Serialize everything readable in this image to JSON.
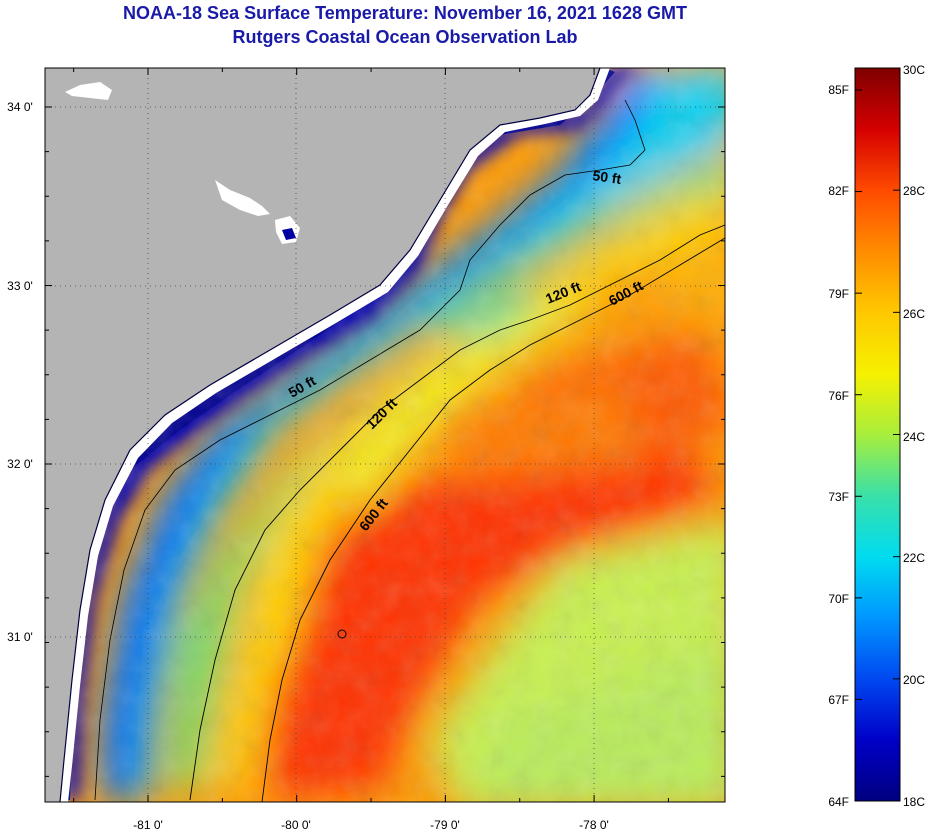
{
  "title": {
    "line1": "NOAA-18 Sea Surface Temperature:  November 16, 2021 1628 GMT",
    "line2": "Rutgers Coastal Ocean Observation Lab"
  },
  "map": {
    "lon_ticks": [
      "-81 0'",
      "-80 0'",
      "-79 0'",
      "-78 0'"
    ],
    "lat_ticks": [
      "34 0'",
      "33 0'",
      "32 0'",
      "31 0'"
    ],
    "contours": [
      {
        "label": "50 ft"
      },
      {
        "label": "50 ft"
      },
      {
        "label": "120 ft"
      },
      {
        "label": "120 ft"
      },
      {
        "label": "600 ft"
      },
      {
        "label": "600 ft"
      }
    ],
    "colors": {
      "land": "#b4b4b4",
      "cloud": "#ffffff",
      "coast": "#00007f",
      "cold": "#0000c0",
      "warm": "#e8280c"
    }
  },
  "colorbar": {
    "fahrenheit": [
      "85F",
      "82F",
      "79F",
      "76F",
      "73F",
      "70F",
      "67F",
      "64F"
    ],
    "celsius": [
      "30C",
      "28C",
      "26C",
      "24C",
      "22C",
      "20C",
      "18C"
    ],
    "stops": [
      "#7f0000",
      "#d40000",
      "#ff4a00",
      "#ff8c00",
      "#ffc800",
      "#f6f000",
      "#a8ee3c",
      "#3ae0a8",
      "#00dcf0",
      "#0096ff",
      "#0048f0",
      "#0000c8",
      "#000080"
    ]
  }
}
